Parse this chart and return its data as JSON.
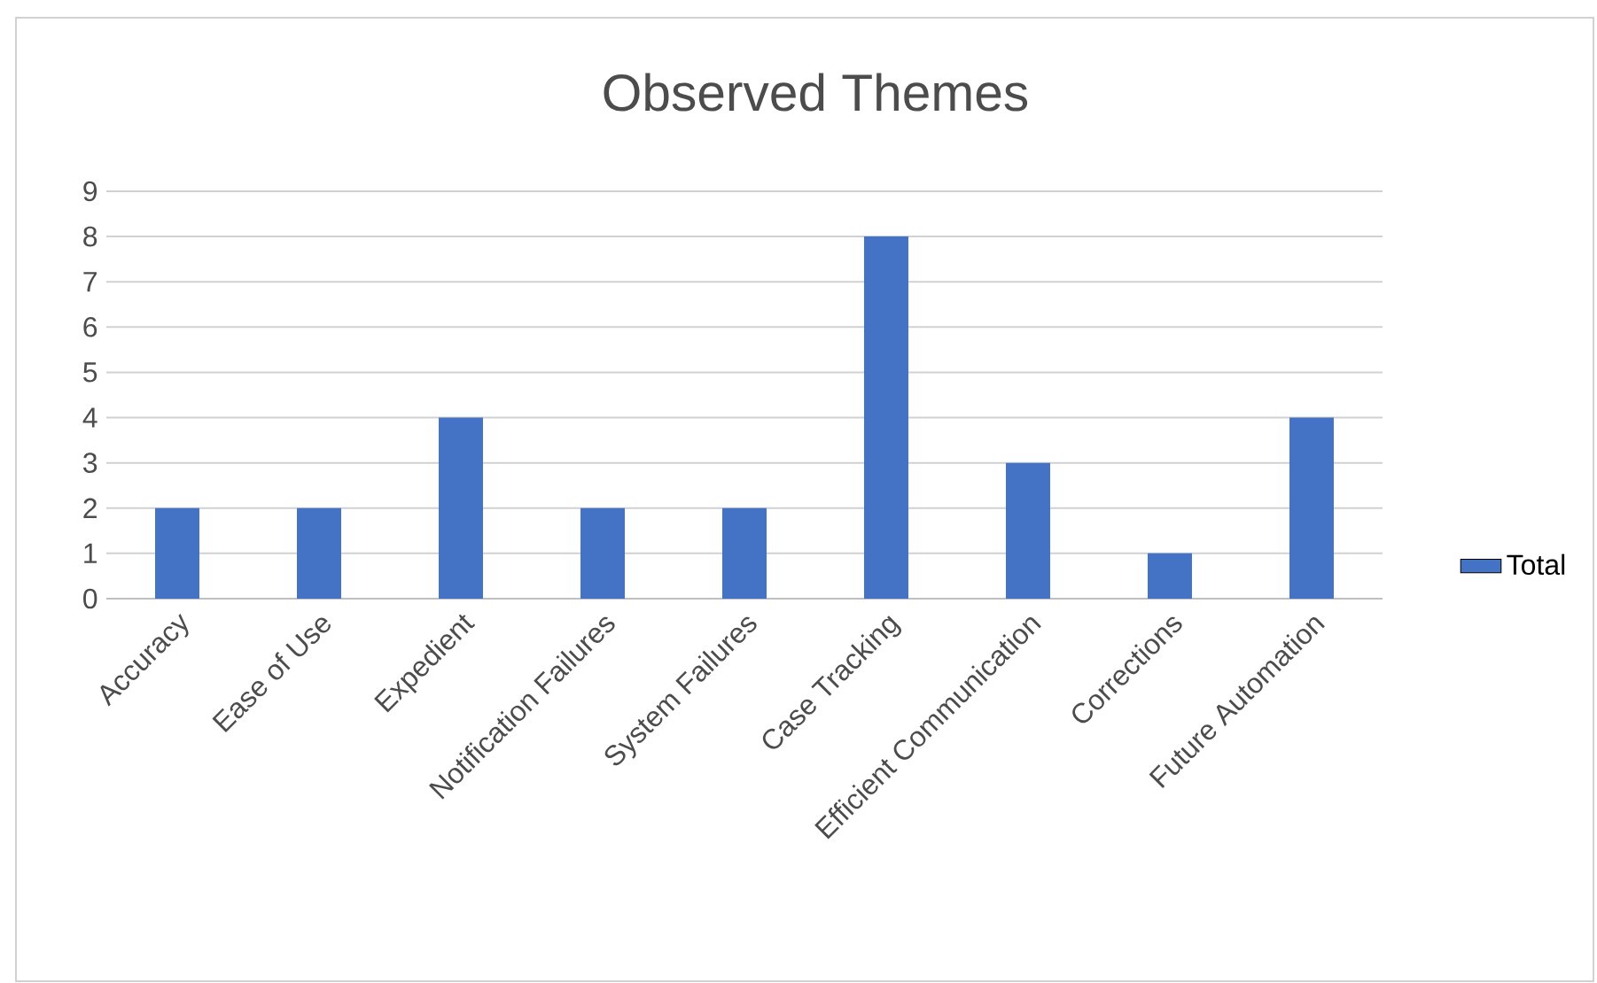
{
  "chart_data": {
    "type": "bar",
    "title": "Observed Themes",
    "categories": [
      "Accuracy",
      "Ease of Use",
      "Expedient",
      "Notification Failures",
      "System Failures",
      "Case Tracking",
      "Efficient Communication",
      "Corrections",
      "Future Automation"
    ],
    "series": [
      {
        "name": "Total",
        "color": "#4472c4",
        "values": [
          2,
          2,
          4,
          2,
          2,
          8,
          3,
          1,
          4
        ]
      }
    ],
    "ylim": [
      0,
      9
    ],
    "yticks": [
      0,
      1,
      2,
      3,
      4,
      5,
      6,
      7,
      8,
      9
    ],
    "grid": "y",
    "legend": "right"
  }
}
